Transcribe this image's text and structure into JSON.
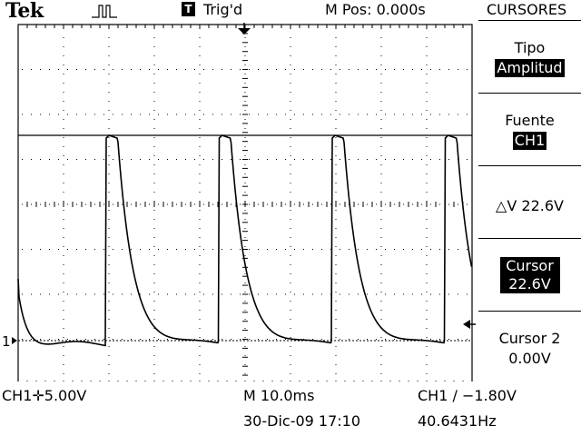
{
  "header": {
    "brand": "Tek",
    "acquisition_icon": "pulse-run-icon",
    "trigger_icon_letter": "T",
    "trigger_status": "Trig'd",
    "horizontal_position": "M Pos: 0.000s",
    "menu_title": "CURSORES"
  },
  "menu": {
    "type": {
      "label": "Tipo",
      "value": "Amplitud"
    },
    "source": {
      "label": "Fuente",
      "value": "CH1"
    },
    "delta": {
      "label": "△V 22.6V"
    },
    "cursor1": {
      "label": "Cursor 1",
      "value": "22.6V"
    },
    "cursor2": {
      "label": "Cursor 2",
      "value": "0.00V"
    }
  },
  "scope": {
    "ch1_ground_marker": "1",
    "cursor1_level_v": 22.6,
    "cursor2_level_v": 0.0,
    "trace_color": "#000000",
    "grid_color": "#000000"
  },
  "status": {
    "ch1_scale": "CH1✛5.00V",
    "timebase": "M 10.0ms",
    "trigger": "CH1 ∕ −1.80V",
    "datetime": "30-Dic-09 17:10",
    "frequency": "40.6431Hz"
  }
}
